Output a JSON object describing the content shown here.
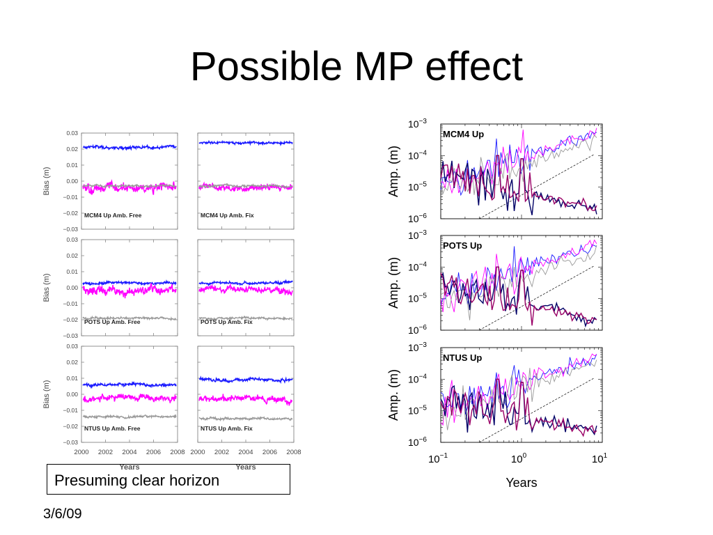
{
  "slide": {
    "title": "Possible MP effect",
    "note": "Presuming clear horizon",
    "date": "3/6/09"
  },
  "colors": {
    "blue": "#1a1aff",
    "magenta": "#ff00ff",
    "gray": "#999999",
    "navy": "#000066",
    "purple": "#990066"
  },
  "chart_data": [
    {
      "type": "line",
      "panel_grid": "3 rows x 2 columns time series",
      "xlabel": "Years",
      "ylabel": "Bias (m)",
      "xlim": [
        2000,
        2008
      ],
      "ylim": [
        -0.03,
        0.03
      ],
      "xticks": [
        "2000",
        "2002",
        "2004",
        "2006",
        "2008"
      ],
      "yticks": [
        "0.03",
        "0.02",
        "0.01",
        "0.00",
        "−0.01",
        "−0.02",
        "−0.03"
      ],
      "panels": [
        {
          "label": "MCM4 Up Amb. Free",
          "series": [
            {
              "color": "blue",
              "level": 0.021,
              "noise": 0.0012
            },
            {
              "color": "magenta",
              "level": -0.004,
              "noise": 0.0035
            },
            {
              "color": "gray",
              "level": -0.003,
              "noise": 0.0008
            }
          ]
        },
        {
          "label": "MCM4 Up Amb. Fix",
          "series": [
            {
              "color": "blue",
              "level": 0.024,
              "noise": 0.001
            },
            {
              "color": "magenta",
              "level": -0.004,
              "noise": 0.0025
            },
            {
              "color": "gray",
              "level": -0.003,
              "noise": 0.0008
            }
          ]
        },
        {
          "label": "POTS Up Amb. Free",
          "series": [
            {
              "color": "blue",
              "level": 0.003,
              "noise": 0.001
            },
            {
              "color": "magenta",
              "level": -0.002,
              "noise": 0.0035
            },
            {
              "color": "gray",
              "level": -0.019,
              "noise": 0.0008
            }
          ]
        },
        {
          "label": "POTS Up Amb. Fix",
          "series": [
            {
              "color": "blue",
              "level": 0.003,
              "noise": 0.001
            },
            {
              "color": "magenta",
              "level": -0.001,
              "noise": 0.0025
            },
            {
              "color": "gray",
              "level": -0.019,
              "noise": 0.0008
            }
          ]
        },
        {
          "label": "NTUS Up Amb. Free",
          "series": [
            {
              "color": "blue",
              "level": 0.006,
              "noise": 0.0012
            },
            {
              "color": "magenta",
              "level": -0.002,
              "noise": 0.0025
            },
            {
              "color": "gray",
              "level": -0.014,
              "noise": 0.0009
            }
          ]
        },
        {
          "label": "NTUS Up Amb. Fix",
          "series": [
            {
              "color": "blue",
              "level": 0.009,
              "noise": 0.0012
            },
            {
              "color": "magenta",
              "level": -0.003,
              "noise": 0.0025
            },
            {
              "color": "gray",
              "level": -0.015,
              "noise": 0.0009
            }
          ]
        }
      ]
    },
    {
      "type": "line",
      "scale": "log-log",
      "xlabel": "Years",
      "ylabel": "Amp. (m)",
      "xlim": [
        0.1,
        10
      ],
      "ylim": [
        1e-06,
        0.001
      ],
      "panels": [
        {
          "label": "MCM4 Up"
        },
        {
          "label": "POTS Up"
        },
        {
          "label": "NTUS Up"
        }
      ],
      "series_colors": [
        "blue",
        "magenta",
        "gray",
        "navy",
        "purple"
      ],
      "reference_line": "dashed black, rising from 1e-06 at 0.3 yr to ~1e-04 at 8 yr"
    }
  ]
}
